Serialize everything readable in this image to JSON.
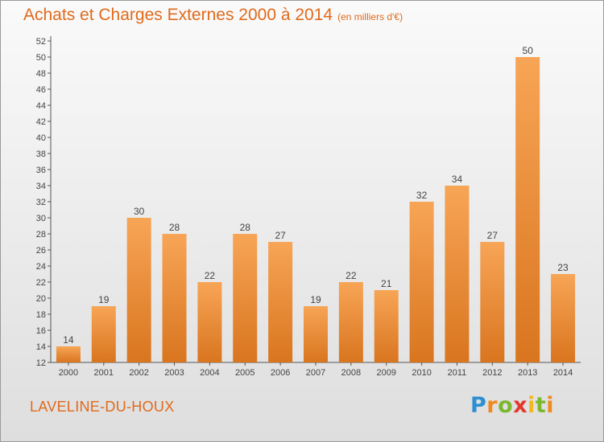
{
  "title": "Achats et Charges Externes 2000 à 2014",
  "subtitle": "(en milliers d'€)",
  "town": "LAVELINE-DU-HOUX",
  "logo_text": "Proxiti",
  "colors": {
    "bar_top": "#f7a556",
    "bar_bottom": "#d9751f",
    "accent": "#e06a1c"
  },
  "chart_data": {
    "type": "bar",
    "categories": [
      "2000",
      "2001",
      "2002",
      "2003",
      "2004",
      "2005",
      "2006",
      "2007",
      "2008",
      "2009",
      "2010",
      "2011",
      "2012",
      "2013",
      "2014"
    ],
    "values": [
      14,
      19,
      30,
      28,
      22,
      28,
      27,
      19,
      22,
      21,
      32,
      34,
      27,
      50,
      23
    ],
    "ylim": [
      12,
      52
    ],
    "yticks": [
      12,
      14,
      16,
      18,
      20,
      22,
      24,
      26,
      28,
      30,
      32,
      34,
      36,
      38,
      40,
      42,
      44,
      46,
      48,
      50,
      52
    ],
    "grid": false,
    "data_labels": true
  }
}
